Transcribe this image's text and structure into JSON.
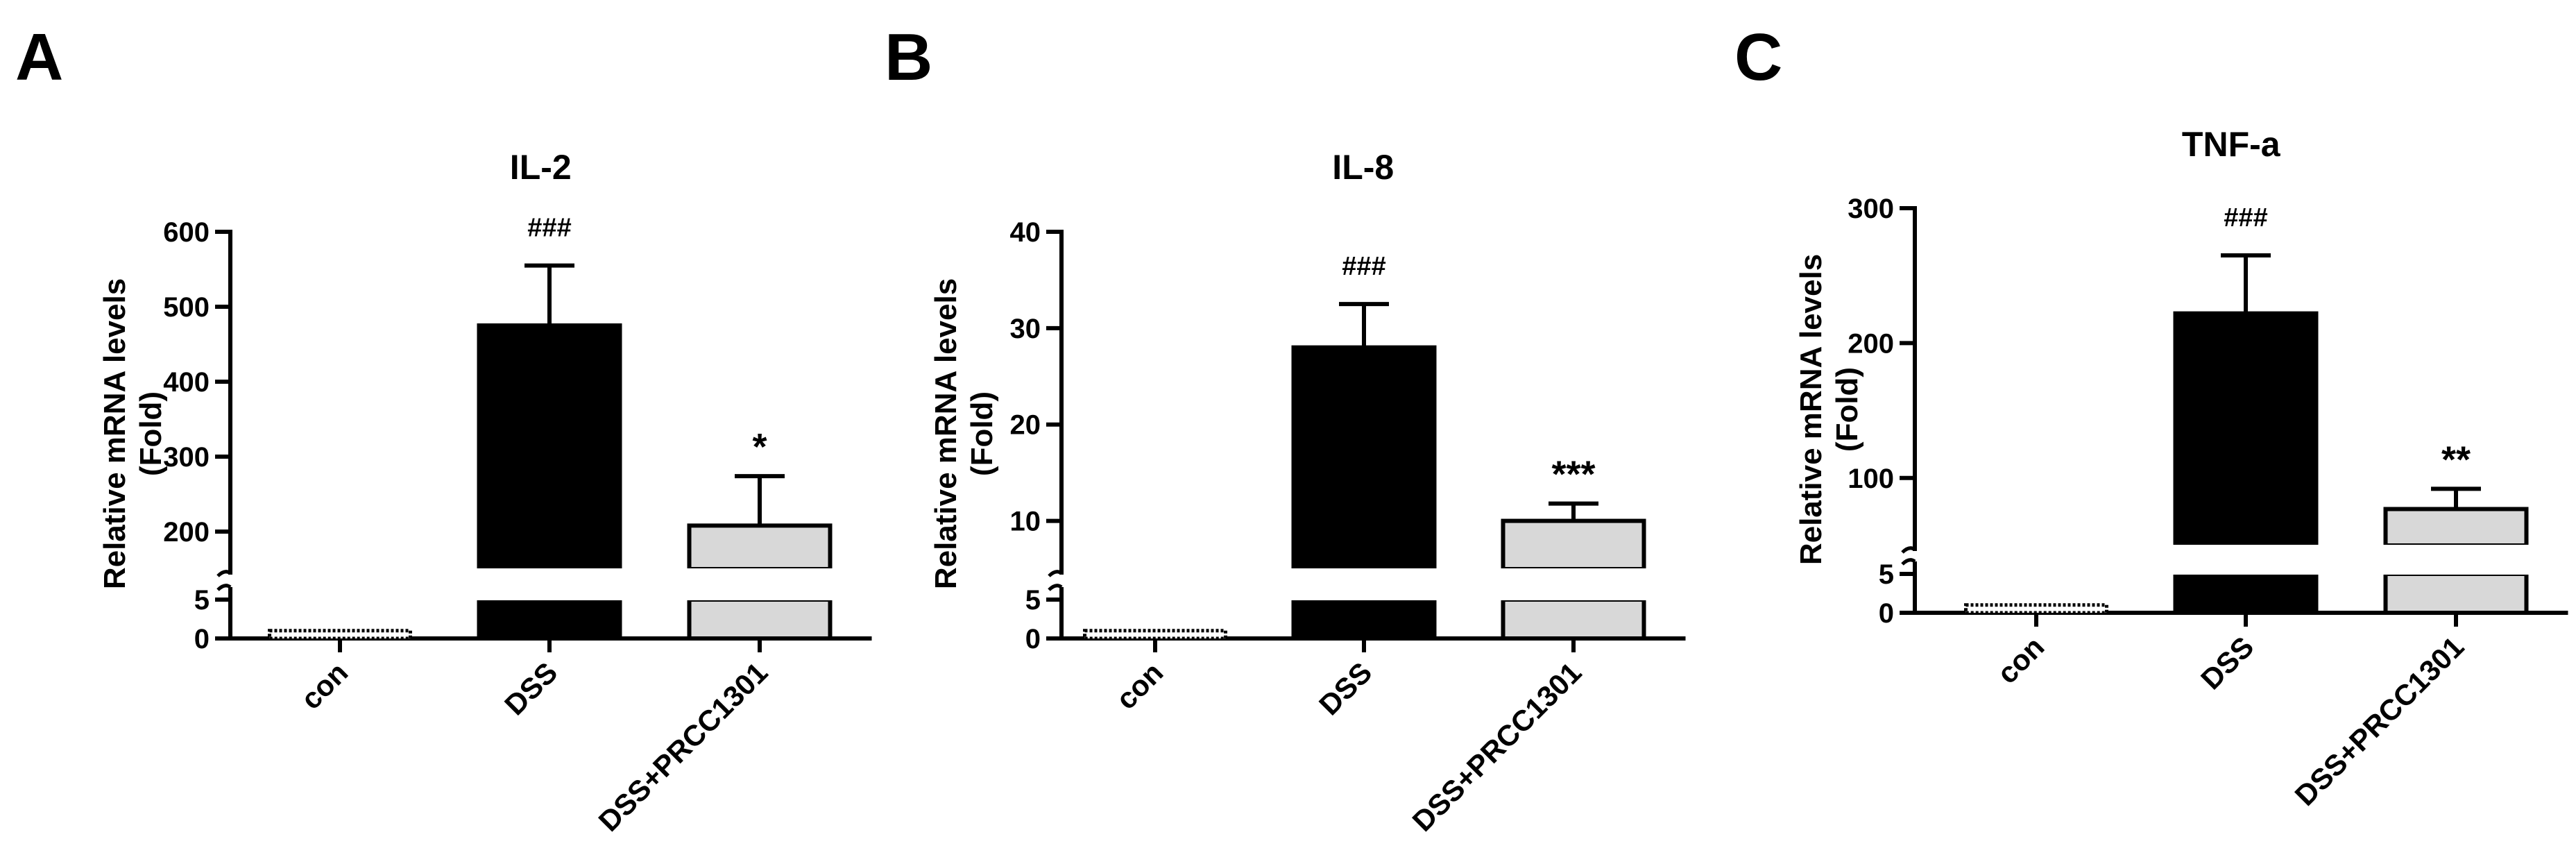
{
  "panels": [
    {
      "letter": "A"
    },
    {
      "letter": "B"
    },
    {
      "letter": "C"
    }
  ],
  "colors": {
    "con": "#ffffff",
    "DSS": "#000000",
    "DSS+PRCC1301": "#d8d8d8",
    "axis": "#000000"
  },
  "chart_data": [
    {
      "type": "bar",
      "title": "IL-2",
      "ylabel": [
        "Relative mRNA levels",
        "(Fold)"
      ],
      "xlabel": "",
      "categories": [
        "con",
        "DSS",
        "DSS+PRCC1301"
      ],
      "values": [
        1,
        475,
        208
      ],
      "errors": [
        0,
        80,
        66
      ],
      "annotations": [
        "",
        "###",
        "*"
      ],
      "broken_axis": true,
      "lower_range": [
        0,
        5
      ],
      "lower_ticks": [
        0,
        5
      ],
      "upper_range": [
        150,
        600
      ],
      "upper_ticks": [
        200,
        300,
        400,
        500,
        600
      ]
    },
    {
      "type": "bar",
      "title": "IL-8",
      "ylabel": [
        "Relative mRNA levels",
        "(Fold)"
      ],
      "xlabel": "",
      "categories": [
        "con",
        "DSS",
        "DSS+PRCC1301"
      ],
      "values": [
        1,
        28,
        10
      ],
      "errors": [
        0,
        4.5,
        1.8
      ],
      "annotations": [
        "",
        "###",
        "***"
      ],
      "broken_axis": true,
      "lower_range": [
        0,
        5
      ],
      "lower_ticks": [
        0,
        5
      ],
      "upper_range": [
        5,
        40
      ],
      "upper_ticks": [
        10,
        20,
        30,
        40
      ]
    },
    {
      "type": "bar",
      "title": "TNF-a",
      "ylabel": [
        "Relative mRNA levels",
        "(Fold)"
      ],
      "xlabel": "",
      "categories": [
        "con",
        "DSS",
        "DSS+PRCC1301"
      ],
      "values": [
        1,
        222,
        77
      ],
      "errors": [
        0,
        43,
        15
      ],
      "annotations": [
        "",
        "###",
        "**"
      ],
      "broken_axis": true,
      "lower_range": [
        0,
        5
      ],
      "lower_ticks": [
        0,
        5
      ],
      "upper_range": [
        50,
        300
      ],
      "upper_ticks": [
        100,
        200,
        300
      ]
    }
  ]
}
